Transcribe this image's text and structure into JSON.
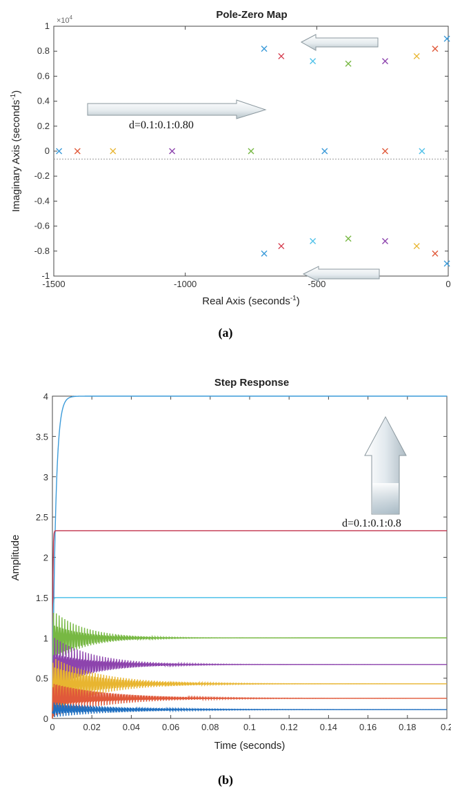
{
  "chart_data": [
    {
      "type": "scatter",
      "title": "Pole-Zero Map",
      "xlabel": "Real Axis (seconds",
      "xlabel_sup": "-1",
      "xlabel_close": ")",
      "ylabel": "Imaginary Axis (seconds",
      "ylabel_sup": "-1",
      "ylabel_close": ")",
      "y_exponent": "×10",
      "y_exponent_sup": "4",
      "xlim": [
        -1500,
        0
      ],
      "ylim": [
        -1,
        1
      ],
      "xticks": [
        -1500,
        -1000,
        -500,
        0
      ],
      "xtick_labels": [
        "-1500",
        "-1000",
        "-500",
        "0"
      ],
      "yticks": [
        -1,
        -0.8,
        -0.6,
        -0.4,
        -0.2,
        0,
        0.2,
        0.4,
        0.6,
        0.8,
        1
      ],
      "ytick_labels": [
        "-1",
        "-0.8",
        "-0.6",
        "-0.4",
        "-0.2",
        "0",
        "0.2",
        "0.4",
        "0.6",
        "0.8",
        "1"
      ],
      "y_scale_note": "values ×10^4",
      "marker": "×",
      "series": [
        {
          "color": "#3a9ad9",
          "x": [
            -1480,
            -470
          ],
          "y": [
            0,
            0
          ]
        },
        {
          "color": "#e0593a",
          "x": [
            -1410,
            -240
          ],
          "y": [
            0,
            0
          ]
        },
        {
          "color": "#e8b530",
          "x": [
            -1275
          ],
          "y": [
            0
          ]
        },
        {
          "color": "#8d44ad",
          "x": [
            -1050
          ],
          "y": [
            0
          ]
        },
        {
          "color": "#77b843",
          "x": [
            -750
          ],
          "y": [
            0
          ]
        },
        {
          "color": "#3a9ad9",
          "x": [
            -700,
            -700,
            -5,
            -5
          ],
          "y": [
            0.82,
            -0.82,
            0.9,
            -0.9
          ]
        },
        {
          "color": "#d63c4e",
          "x": [
            -635,
            -635
          ],
          "y": [
            0.76,
            -0.76
          ]
        },
        {
          "color": "#4fc1e9",
          "x": [
            -515,
            -515,
            -100
          ],
          "y": [
            0.72,
            -0.72,
            0
          ]
        },
        {
          "color": "#77b843",
          "x": [
            -380,
            -380
          ],
          "y": [
            0.7,
            -0.7
          ]
        },
        {
          "color": "#8d44ad",
          "x": [
            -240,
            -240
          ],
          "y": [
            0.72,
            -0.72
          ]
        },
        {
          "color": "#e8b530",
          "x": [
            -120,
            -120
          ],
          "y": [
            0.76,
            -0.76
          ]
        },
        {
          "color": "#e0593a",
          "x": [
            -50,
            -50
          ],
          "y": [
            0.82,
            -0.82
          ]
        }
      ],
      "annotation": "d=0.1:0.1:0.80",
      "caption": "(a)"
    },
    {
      "type": "line",
      "title": "Step Response",
      "xlabel": "Time (seconds)",
      "ylabel": "Amplitude",
      "xlim": [
        0,
        0.2
      ],
      "ylim": [
        0,
        4
      ],
      "xticks": [
        0,
        0.02,
        0.04,
        0.06,
        0.08,
        0.1,
        0.12,
        0.14,
        0.16,
        0.18,
        0.2
      ],
      "xtick_labels": [
        "0",
        "0.02",
        "0.04",
        "0.06",
        "0.08",
        "0.1",
        "0.12",
        "0.14",
        "0.16",
        "0.18",
        "0.2"
      ],
      "yticks": [
        0,
        0.5,
        1,
        1.5,
        2,
        2.5,
        3,
        3.5,
        4
      ],
      "ytick_labels": [
        "0",
        "0.5",
        "1",
        "1.5",
        "2",
        "2.5",
        "3",
        "3.5",
        "4"
      ],
      "series": [
        {
          "color": "#3a9ad9",
          "final": 4.0,
          "response": "overdamped"
        },
        {
          "color": "#c0304a",
          "final": 2.33,
          "response": "fast"
        },
        {
          "color": "#4fc1e9",
          "final": 1.5,
          "response": "fast"
        },
        {
          "color": "#77b843",
          "final": 1.0,
          "response": "oscillatory"
        },
        {
          "color": "#8d44ad",
          "final": 0.67,
          "response": "oscillatory"
        },
        {
          "color": "#e8b530",
          "final": 0.43,
          "response": "oscillatory"
        },
        {
          "color": "#e0593a",
          "final": 0.25,
          "response": "oscillatory"
        },
        {
          "color": "#1f6fc0",
          "final": 0.11,
          "response": "oscillatory"
        }
      ],
      "annotation": "d=0.1:0.1:0.8",
      "caption": "(b)"
    }
  ]
}
